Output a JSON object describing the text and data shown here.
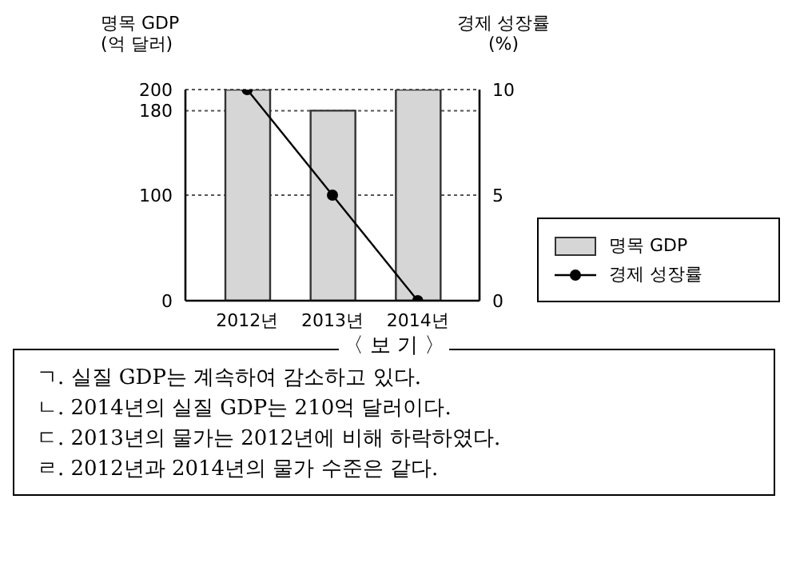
{
  "chart_data": {
    "type": "bar",
    "ylabel": "명목 GDP\n(억 달러)",
    "y2label": "경제 성장률\n(%)",
    "categories": [
      "2012년",
      "2013년",
      "2014년"
    ],
    "series": [
      {
        "name": "명목 GDP",
        "color": "#d6d6d6",
        "values": [
          200,
          180,
          200
        ]
      },
      {
        "name": "경제 성장률",
        "type": "line",
        "axis": "y2",
        "color": "#000000",
        "values": [
          10,
          5,
          0
        ]
      }
    ],
    "ylim": [
      0,
      200
    ],
    "yticks": [
      0,
      100,
      180,
      200
    ],
    "y2lim": [
      0,
      10
    ],
    "y2ticks": [
      0,
      5,
      10
    ],
    "grid": "y",
    "legend": "right",
    "marker": "circle",
    "line_style": "solid",
    "annotations": [
      "〈 보 기 〉",
      "ㄱ. 실질 GDP는 계속하여 감소하고 있다.",
      "ㄴ. 2014년의 실질 GDP는 210억 달러이다.",
      "ㄷ. 2013년의 물가는 2012년에 비해 하락하였다.",
      "ㄹ. 2012년과 2014년의 물가 수준은 같다."
    ]
  }
}
